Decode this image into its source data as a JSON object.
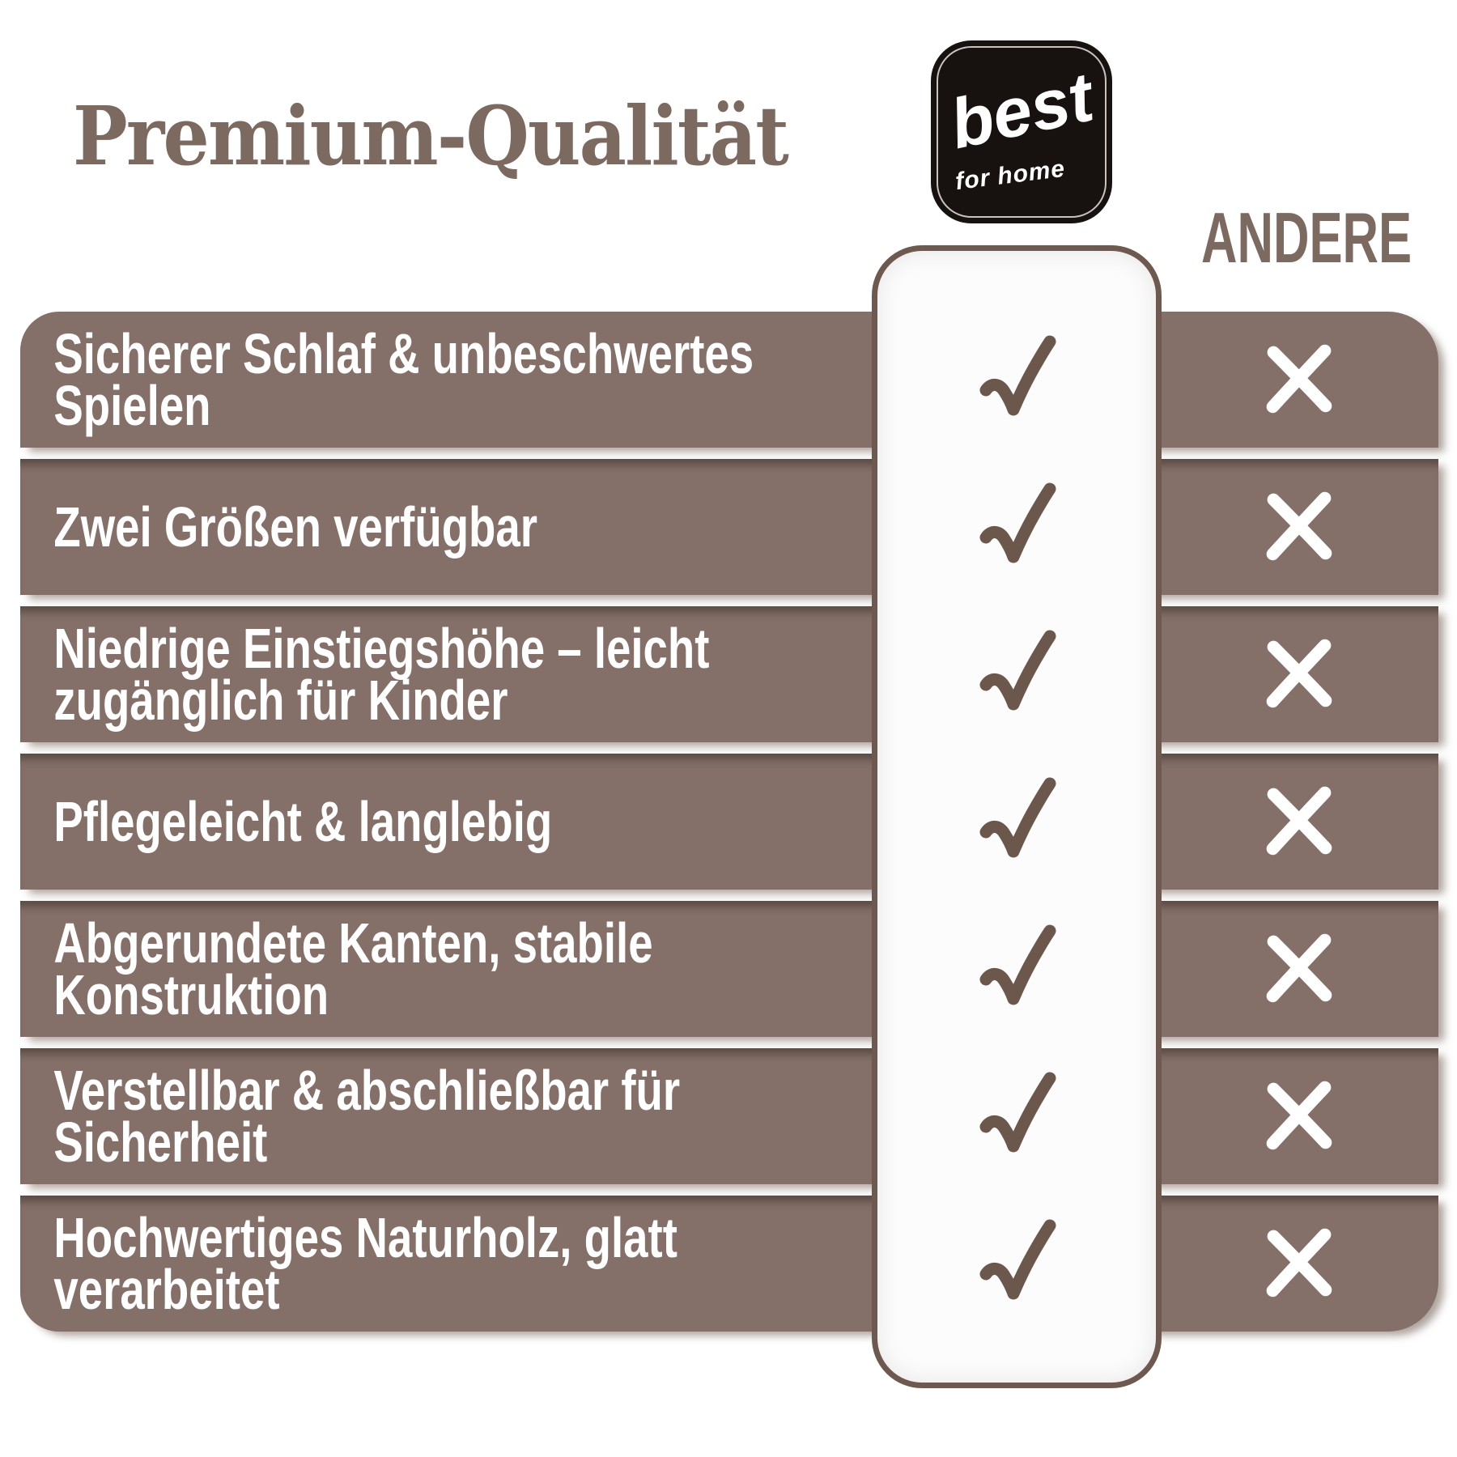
{
  "title": "Premium-Qualität",
  "brand_logo": {
    "word": "best",
    "subtext": "for home"
  },
  "competitor_label": "ANDERE",
  "comparison": {
    "brand_column": "best for home",
    "competitor_column": "ANDERE",
    "check_symbol": "check",
    "cross_symbol": "cross",
    "rows": [
      {
        "lines": [
          "Sicherer Schlaf & unbeschwertes",
          "Spielen"
        ],
        "brand": "check",
        "andere": "cross"
      },
      {
        "lines": [
          "Zwei Größen verfügbar"
        ],
        "brand": "check",
        "andere": "cross"
      },
      {
        "lines": [
          "Niedrige Einstiegshöhe – leicht",
          "zugänglich für Kinder"
        ],
        "brand": "check",
        "andere": "cross"
      },
      {
        "lines": [
          "Pflegeleicht & langlebig"
        ],
        "brand": "check",
        "andere": "cross"
      },
      {
        "lines": [
          "Abgerundete Kanten, stabile",
          "Konstruktion"
        ],
        "brand": "check",
        "andere": "cross"
      },
      {
        "lines": [
          "Verstellbar & abschließbar für",
          "Sicherheit"
        ],
        "brand": "check",
        "andere": "cross"
      },
      {
        "lines": [
          "Hochwertiges Naturholz, glatt",
          "verarbeitet"
        ],
        "brand": "check",
        "andere": "cross"
      }
    ]
  },
  "colors": {
    "row_bg": "#847069",
    "accent_text": "#7c6a61",
    "check": "#6b574c",
    "cross": "#ffffff",
    "pill_border": "#6d594f",
    "pill_bg": "#fcfcfc",
    "logo_bg": "#17120f",
    "logo_frame": "#c6c3c1",
    "row_text": "#ffffff",
    "page_bg": "#ffffff"
  }
}
